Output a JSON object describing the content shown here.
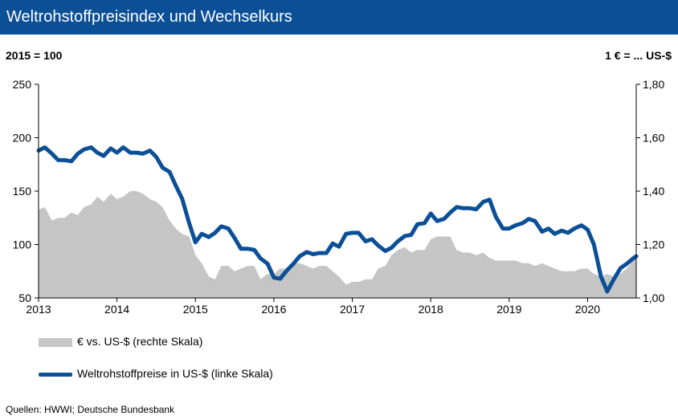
{
  "header": {
    "title": "Weltrohstoffpreisindex und Wechselkurs"
  },
  "units": {
    "left": "2015 = 100",
    "right": "1 € = ... US-$"
  },
  "legend": {
    "area_label": "€ vs. US-$ (rechte Skala)",
    "line_label": "Weltrohstoffpreise in US-$ (linke Skala)"
  },
  "source": "Quellen: HWWI; Deutsche Bundesbank",
  "colors": {
    "header_bg": "#0b4f97",
    "line": "#0b4f97",
    "area": "#c6c6c6",
    "text": "#000000"
  },
  "chart_data": {
    "type": "line",
    "grid": false,
    "x_ticks": [
      "2013",
      "2014",
      "2015",
      "2016",
      "2017",
      "2018",
      "2019",
      "2020"
    ],
    "xlim": [
      2013.0,
      2020.62
    ],
    "y_left": {
      "label": "2015 = 100",
      "lim": [
        50,
        250
      ],
      "ticks": [
        50,
        100,
        150,
        200,
        250
      ],
      "tick_labels": [
        "50",
        "100",
        "150",
        "200",
        "250"
      ]
    },
    "y_right": {
      "label": "1 € = ... US-$",
      "lim": [
        1.0,
        1.8
      ],
      "ticks": [
        1.0,
        1.2,
        1.4,
        1.6,
        1.8
      ],
      "tick_labels": [
        "1,00",
        "1,20",
        "1,40",
        "1,60",
        "1,80"
      ]
    },
    "series": [
      {
        "name": "€ vs. US-$ (rechte Skala)",
        "type": "area",
        "axis": "right",
        "x": [
          2013.0,
          2013.08,
          2013.17,
          2013.25,
          2013.33,
          2013.42,
          2013.5,
          2013.58,
          2013.67,
          2013.75,
          2013.83,
          2013.92,
          2014.0,
          2014.08,
          2014.17,
          2014.25,
          2014.33,
          2014.42,
          2014.5,
          2014.58,
          2014.67,
          2014.75,
          2014.83,
          2014.92,
          2015.0,
          2015.08,
          2015.17,
          2015.25,
          2015.33,
          2015.42,
          2015.5,
          2015.58,
          2015.67,
          2015.75,
          2015.83,
          2015.92,
          2016.0,
          2016.08,
          2016.17,
          2016.25,
          2016.33,
          2016.42,
          2016.5,
          2016.58,
          2016.67,
          2016.75,
          2016.83,
          2016.92,
          2017.0,
          2017.08,
          2017.17,
          2017.25,
          2017.33,
          2017.42,
          2017.5,
          2017.58,
          2017.67,
          2017.75,
          2017.83,
          2017.92,
          2018.0,
          2018.08,
          2018.17,
          2018.25,
          2018.33,
          2018.42,
          2018.5,
          2018.58,
          2018.67,
          2018.75,
          2018.83,
          2018.92,
          2019.0,
          2019.08,
          2019.17,
          2019.25,
          2019.33,
          2019.42,
          2019.5,
          2019.58,
          2019.67,
          2019.75,
          2019.83,
          2019.92,
          2020.0,
          2020.08,
          2020.17,
          2020.25,
          2020.33,
          2020.42,
          2020.5,
          2020.58,
          2020.62
        ],
        "values": [
          1.33,
          1.34,
          1.29,
          1.3,
          1.3,
          1.32,
          1.31,
          1.34,
          1.35,
          1.38,
          1.36,
          1.39,
          1.37,
          1.38,
          1.4,
          1.4,
          1.39,
          1.37,
          1.36,
          1.34,
          1.29,
          1.26,
          1.24,
          1.23,
          1.16,
          1.13,
          1.08,
          1.07,
          1.12,
          1.12,
          1.1,
          1.11,
          1.12,
          1.12,
          1.07,
          1.09,
          1.09,
          1.11,
          1.11,
          1.13,
          1.13,
          1.12,
          1.11,
          1.12,
          1.12,
          1.1,
          1.08,
          1.05,
          1.06,
          1.06,
          1.07,
          1.07,
          1.11,
          1.12,
          1.16,
          1.18,
          1.19,
          1.17,
          1.18,
          1.18,
          1.22,
          1.23,
          1.23,
          1.23,
          1.18,
          1.17,
          1.17,
          1.16,
          1.17,
          1.15,
          1.14,
          1.14,
          1.14,
          1.14,
          1.13,
          1.13,
          1.12,
          1.13,
          1.12,
          1.11,
          1.1,
          1.1,
          1.1,
          1.11,
          1.11,
          1.09,
          1.08,
          1.09,
          1.08,
          1.09,
          1.11,
          1.14,
          1.17
        ]
      },
      {
        "name": "Weltrohstoffpreise in US-$ (linke Skala)",
        "type": "line",
        "axis": "left",
        "x": [
          2013.0,
          2013.08,
          2013.17,
          2013.25,
          2013.33,
          2013.42,
          2013.5,
          2013.58,
          2013.67,
          2013.75,
          2013.83,
          2013.92,
          2014.0,
          2014.08,
          2014.17,
          2014.25,
          2014.33,
          2014.42,
          2014.5,
          2014.58,
          2014.67,
          2014.75,
          2014.83,
          2014.92,
          2015.0,
          2015.08,
          2015.17,
          2015.25,
          2015.33,
          2015.42,
          2015.5,
          2015.58,
          2015.67,
          2015.75,
          2015.83,
          2015.92,
          2016.0,
          2016.08,
          2016.17,
          2016.25,
          2016.33,
          2016.42,
          2016.5,
          2016.58,
          2016.67,
          2016.75,
          2016.83,
          2016.92,
          2017.0,
          2017.08,
          2017.17,
          2017.25,
          2017.33,
          2017.42,
          2017.5,
          2017.58,
          2017.67,
          2017.75,
          2017.83,
          2017.92,
          2018.0,
          2018.08,
          2018.17,
          2018.25,
          2018.33,
          2018.42,
          2018.5,
          2018.58,
          2018.67,
          2018.75,
          2018.83,
          2018.92,
          2019.0,
          2019.08,
          2019.17,
          2019.25,
          2019.33,
          2019.42,
          2019.5,
          2019.58,
          2019.67,
          2019.75,
          2019.83,
          2019.92,
          2020.0,
          2020.08,
          2020.17,
          2020.25,
          2020.33,
          2020.42,
          2020.5,
          2020.58,
          2020.62
        ],
        "values": [
          188,
          191,
          185,
          179,
          179,
          178,
          185,
          189,
          191,
          186,
          183,
          190,
          186,
          191,
          186,
          186,
          185,
          188,
          182,
          172,
          168,
          155,
          143,
          120,
          102,
          110,
          107,
          111,
          117,
          115,
          106,
          96,
          96,
          95,
          87,
          82,
          69,
          68,
          76,
          82,
          89,
          93,
          91,
          92,
          92,
          101,
          98,
          110,
          111,
          111,
          103,
          105,
          99,
          94,
          97,
          103,
          108,
          109,
          119,
          120,
          129,
          122,
          124,
          130,
          135,
          134,
          134,
          133,
          140,
          142,
          126,
          115,
          115,
          118,
          120,
          124,
          122,
          112,
          115,
          110,
          113,
          111,
          115,
          118,
          114,
          100,
          70,
          56,
          67,
          78,
          82,
          87,
          89
        ]
      }
    ]
  }
}
